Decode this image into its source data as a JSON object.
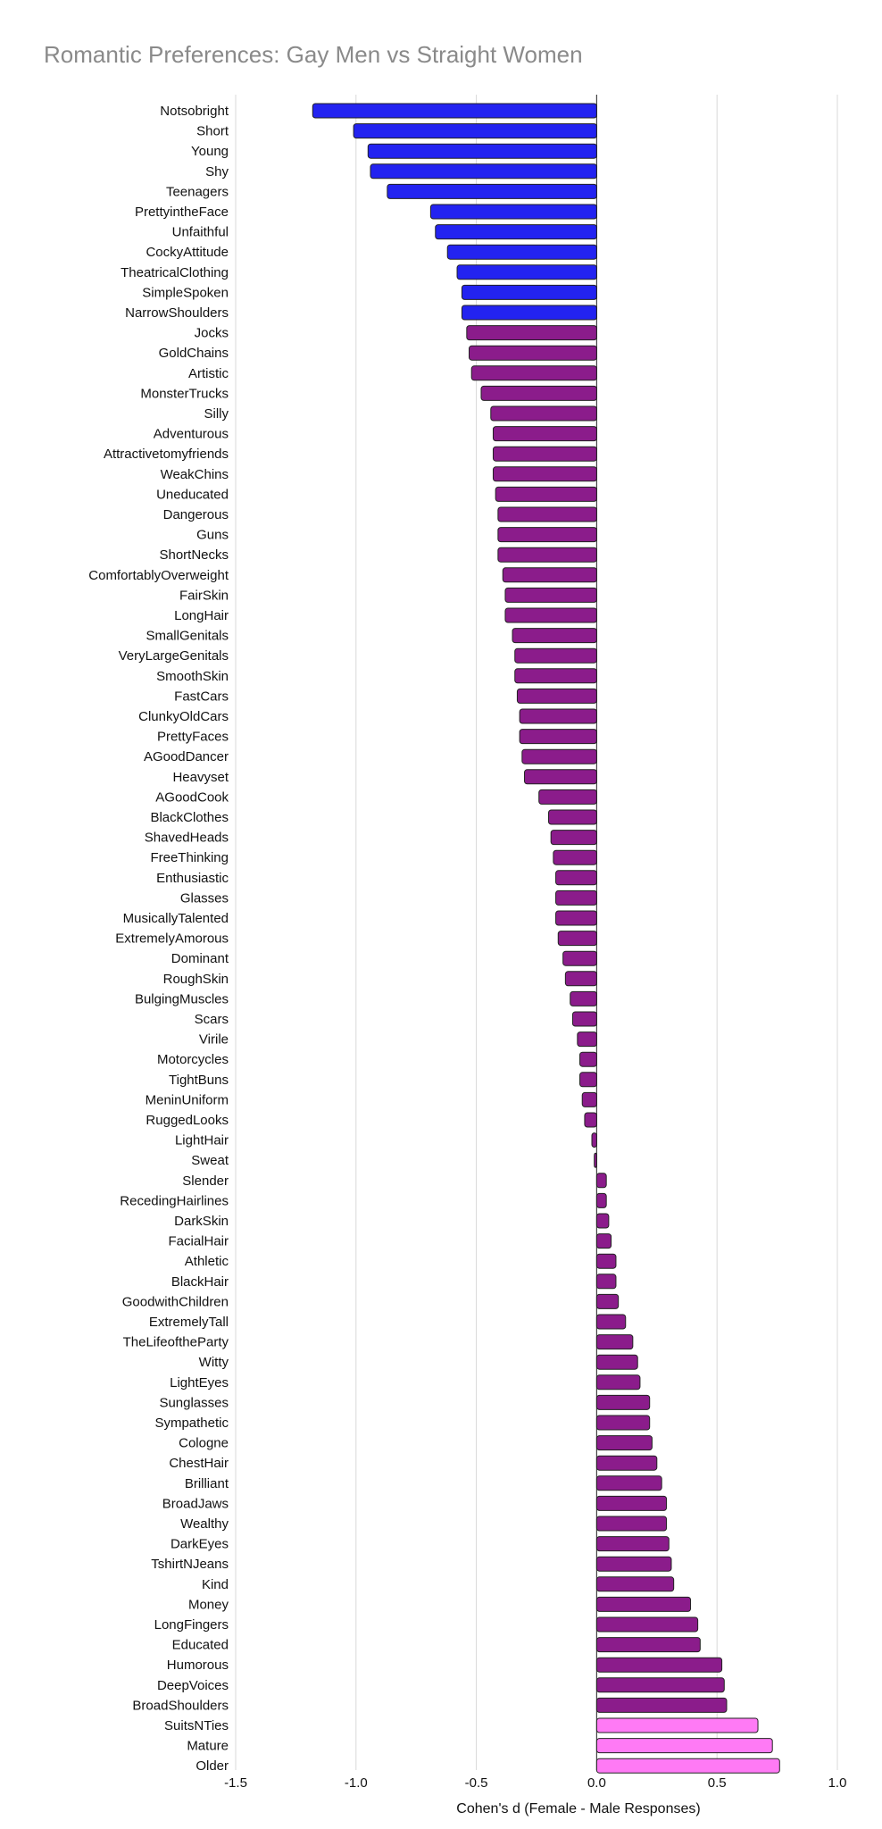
{
  "chart_data": {
    "type": "bar",
    "orientation": "horizontal",
    "title": "Romantic Preferences: Gay Men vs Straight Women",
    "xlabel": "Cohen's d (Female - Male Responses)",
    "ylabel": "",
    "xlim": [
      -1.5,
      1.0
    ],
    "xticks": [
      -1.5,
      -1.0,
      -0.5,
      0.0,
      0.5,
      1.0
    ],
    "xtick_labels": [
      "-1.5",
      "-1.0",
      "-0.5",
      "0.0",
      "0.5",
      "1.0"
    ],
    "grid": "vertical",
    "legend": "none",
    "colors": {
      "strong_negative": "#2323f0",
      "neutral": "#8b1c8b",
      "strong_positive": "#ff7af5",
      "edge": "#222222",
      "grid": "#d8d8d8"
    },
    "categories": [
      "Notsobright",
      "Short",
      "Young",
      "Shy",
      "Teenagers",
      "PrettyintheFace",
      "Unfaithful",
      "CockyAttitude",
      "TheatricalClothing",
      "SimpleSpoken",
      "NarrowShoulders",
      "Jocks",
      "GoldChains",
      "Artistic",
      "MonsterTrucks",
      "Silly",
      "Adventurous",
      "Attractivetomyfriends",
      "WeakChins",
      "Uneducated",
      "Dangerous",
      "Guns",
      "ShortNecks",
      "ComfortablyOverweight",
      "FairSkin",
      "LongHair",
      "SmallGenitals",
      "VeryLargeGenitals",
      "SmoothSkin",
      "FastCars",
      "ClunkyOldCars",
      "PrettyFaces",
      "AGoodDancer",
      "Heavyset",
      "AGoodCook",
      "BlackClothes",
      "ShavedHeads",
      "FreeThinking",
      "Enthusiastic",
      "Glasses",
      "MusicallyTalented",
      "ExtremelyAmorous",
      "Dominant",
      "RoughSkin",
      "BulgingMuscles",
      "Scars",
      "Virile",
      "Motorcycles",
      "TightBuns",
      "MeninUniform",
      "RuggedLooks",
      "LightHair",
      "Sweat",
      "Slender",
      "RecedingHairlines",
      "DarkSkin",
      "FacialHair",
      "Athletic",
      "BlackHair",
      "GoodwithChildren",
      "ExtremelyTall",
      "TheLifeoftheParty",
      "Witty",
      "LightEyes",
      "Sunglasses",
      "Sympathetic",
      "Cologne",
      "ChestHair",
      "Brilliant",
      "BroadJaws",
      "Wealthy",
      "DarkEyes",
      "TshirtNJeans",
      "Kind",
      "Money",
      "LongFingers",
      "Educated",
      "Humorous",
      "DeepVoices",
      "BroadShoulders",
      "SuitsNTies",
      "Mature",
      "Older"
    ],
    "values": [
      -1.18,
      -1.01,
      -0.95,
      -0.94,
      -0.87,
      -0.69,
      -0.67,
      -0.62,
      -0.58,
      -0.56,
      -0.56,
      -0.54,
      -0.53,
      -0.52,
      -0.48,
      -0.44,
      -0.43,
      -0.43,
      -0.43,
      -0.42,
      -0.41,
      -0.41,
      -0.41,
      -0.39,
      -0.38,
      -0.38,
      -0.35,
      -0.34,
      -0.34,
      -0.33,
      -0.32,
      -0.32,
      -0.31,
      -0.3,
      -0.24,
      -0.2,
      -0.19,
      -0.18,
      -0.17,
      -0.17,
      -0.17,
      -0.16,
      -0.14,
      -0.13,
      -0.11,
      -0.1,
      -0.08,
      -0.07,
      -0.07,
      -0.06,
      -0.05,
      -0.02,
      -0.01,
      0.04,
      0.04,
      0.05,
      0.06,
      0.08,
      0.08,
      0.09,
      0.12,
      0.15,
      0.17,
      0.18,
      0.22,
      0.22,
      0.23,
      0.25,
      0.27,
      0.29,
      0.29,
      0.3,
      0.31,
      0.32,
      0.39,
      0.42,
      0.43,
      0.52,
      0.53,
      0.54,
      0.67,
      0.73,
      0.76
    ],
    "color_groups": [
      "strong_negative",
      "strong_negative",
      "strong_negative",
      "strong_negative",
      "strong_negative",
      "strong_negative",
      "strong_negative",
      "strong_negative",
      "strong_negative",
      "strong_negative",
      "strong_negative",
      "neutral",
      "neutral",
      "neutral",
      "neutral",
      "neutral",
      "neutral",
      "neutral",
      "neutral",
      "neutral",
      "neutral",
      "neutral",
      "neutral",
      "neutral",
      "neutral",
      "neutral",
      "neutral",
      "neutral",
      "neutral",
      "neutral",
      "neutral",
      "neutral",
      "neutral",
      "neutral",
      "neutral",
      "neutral",
      "neutral",
      "neutral",
      "neutral",
      "neutral",
      "neutral",
      "neutral",
      "neutral",
      "neutral",
      "neutral",
      "neutral",
      "neutral",
      "neutral",
      "neutral",
      "neutral",
      "neutral",
      "neutral",
      "neutral",
      "neutral",
      "neutral",
      "neutral",
      "neutral",
      "neutral",
      "neutral",
      "neutral",
      "neutral",
      "neutral",
      "neutral",
      "neutral",
      "neutral",
      "neutral",
      "neutral",
      "neutral",
      "neutral",
      "neutral",
      "neutral",
      "neutral",
      "neutral",
      "neutral",
      "neutral",
      "neutral",
      "neutral",
      "neutral",
      "neutral",
      "neutral",
      "strong_positive",
      "strong_positive",
      "strong_positive"
    ]
  }
}
